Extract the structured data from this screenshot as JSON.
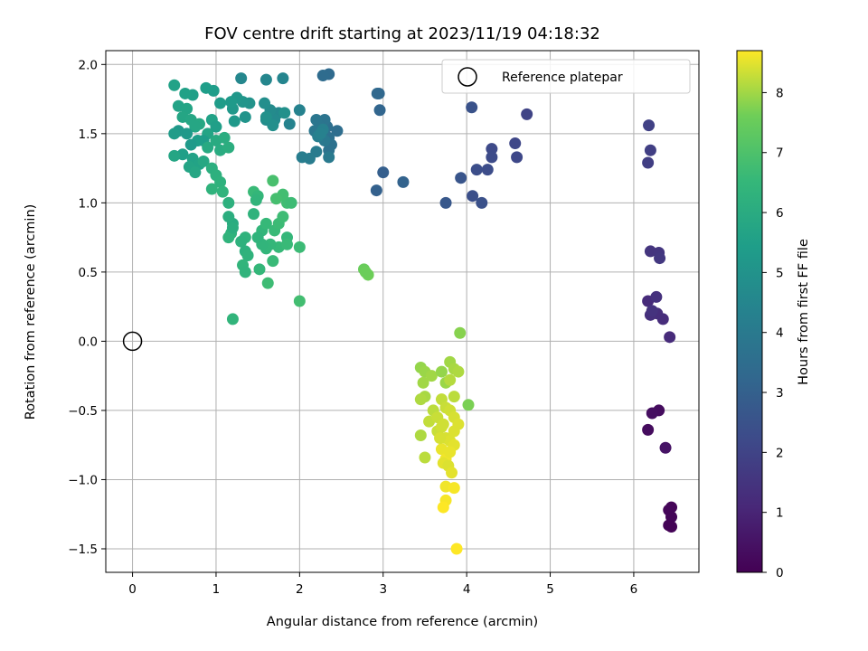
{
  "chart_data": {
    "type": "scatter",
    "title": "FOV centre drift starting at 2023/11/19 04:18:32",
    "xlabel": "Angular distance from reference (arcmin)",
    "ylabel": "Rotation from reference (arcmin)",
    "xlim": [
      -0.32,
      6.78
    ],
    "ylim": [
      -1.67,
      2.1
    ],
    "xticks": [
      0,
      1,
      2,
      3,
      4,
      5,
      6
    ],
    "yticks": [
      -1.5,
      -1.0,
      -0.5,
      0.0,
      0.5,
      1.0,
      1.5,
      2.0
    ],
    "ytick_labels": [
      "−1.5",
      "−1.0",
      "−0.5",
      "0.0",
      "0.5",
      "1.0",
      "1.5",
      "2.0"
    ],
    "grid": true,
    "legend": {
      "label": "Reference platepar",
      "placement": "upper right"
    },
    "reference_point": {
      "x": 0,
      "y": 0
    },
    "colorbar": {
      "label": "Hours from first FF file",
      "min": 0,
      "max": 8.7,
      "ticks": [
        0,
        1,
        2,
        3,
        4,
        5,
        6,
        7,
        8
      ],
      "colormap": "viridis"
    },
    "series": [
      {
        "points": [
          [
            6.3,
            -0.5,
            0.3
          ],
          [
            6.22,
            -0.52,
            0.35
          ],
          [
            6.17,
            -0.64,
            0.3
          ],
          [
            6.38,
            -0.77,
            0.5
          ],
          [
            6.45,
            -1.2,
            0.1
          ],
          [
            6.42,
            -1.22,
            0.15
          ],
          [
            6.45,
            -1.27,
            0.12
          ],
          [
            6.42,
            -1.33,
            0.08
          ],
          [
            6.45,
            -1.34,
            0.05
          ],
          [
            6.43,
            0.03,
            1.2
          ],
          [
            6.35,
            0.16,
            1.25
          ],
          [
            6.28,
            0.2,
            1.3
          ],
          [
            6.2,
            0.19,
            1.35
          ],
          [
            6.17,
            0.29,
            1.2
          ],
          [
            6.27,
            0.32,
            1.4
          ],
          [
            6.22,
            0.22,
            1.45
          ],
          [
            6.2,
            0.65,
            1.5
          ],
          [
            6.3,
            0.64,
            1.55
          ],
          [
            6.31,
            0.6,
            1.6
          ],
          [
            6.17,
            1.29,
            1.8
          ],
          [
            6.2,
            1.38,
            1.85
          ],
          [
            6.18,
            1.56,
            1.9
          ],
          [
            4.72,
            1.64,
            2.0
          ],
          [
            4.58,
            1.43,
            2.1
          ],
          [
            4.6,
            1.33,
            2.15
          ],
          [
            4.3,
            1.39,
            2.2
          ],
          [
            4.3,
            1.33,
            2.25
          ],
          [
            4.25,
            1.24,
            2.3
          ],
          [
            4.12,
            1.24,
            2.35
          ],
          [
            4.07,
            1.05,
            2.4
          ],
          [
            4.18,
            1.0,
            2.45
          ],
          [
            4.06,
            1.69,
            2.5
          ],
          [
            3.93,
            1.18,
            2.6
          ],
          [
            3.75,
            1.0,
            2.7
          ],
          [
            3.0,
            1.22,
            2.95
          ],
          [
            2.92,
            1.09,
            3.0
          ],
          [
            3.24,
            1.15,
            3.1
          ],
          [
            2.96,
            1.67,
            3.2
          ],
          [
            2.95,
            1.79,
            3.25
          ],
          [
            2.93,
            1.79,
            3.3
          ],
          [
            2.35,
            1.93,
            3.4
          ],
          [
            2.28,
            1.92,
            3.45
          ],
          [
            2.45,
            1.52,
            3.5
          ],
          [
            2.33,
            1.55,
            3.55
          ],
          [
            2.35,
            1.47,
            3.6
          ],
          [
            2.38,
            1.42,
            3.65
          ],
          [
            2.35,
            1.38,
            3.7
          ],
          [
            2.3,
            1.6,
            3.75
          ],
          [
            2.25,
            1.55,
            3.8
          ],
          [
            2.2,
            1.6,
            3.85
          ],
          [
            2.18,
            1.52,
            3.9
          ],
          [
            2.3,
            1.45,
            3.95
          ],
          [
            2.35,
            1.33,
            4.0
          ],
          [
            2.2,
            1.37,
            4.05
          ],
          [
            2.12,
            1.32,
            4.1
          ],
          [
            2.03,
            1.33,
            4.15
          ],
          [
            2.22,
            1.48,
            4.2
          ],
          [
            2.28,
            1.53,
            4.25
          ],
          [
            2.25,
            1.5,
            4.3
          ],
          [
            2.0,
            1.67,
            4.35
          ],
          [
            1.88,
            1.57,
            4.4
          ],
          [
            1.8,
            1.9,
            4.45
          ],
          [
            1.6,
            1.89,
            4.5
          ],
          [
            1.3,
            1.9,
            4.55
          ],
          [
            1.75,
            1.65,
            4.6
          ],
          [
            1.7,
            1.6,
            4.65
          ],
          [
            1.65,
            1.67,
            4.7
          ],
          [
            1.6,
            1.6,
            4.75
          ],
          [
            1.58,
            1.72,
            4.8
          ],
          [
            1.68,
            1.56,
            4.85
          ],
          [
            1.82,
            1.65,
            4.9
          ],
          [
            1.6,
            1.62,
            4.95
          ],
          [
            1.4,
            1.72,
            5.0
          ],
          [
            1.35,
            1.62,
            5.05
          ],
          [
            1.32,
            1.73,
            5.1
          ],
          [
            1.25,
            1.76,
            5.15
          ],
          [
            1.2,
            1.68,
            5.2
          ],
          [
            1.22,
            1.59,
            5.25
          ],
          [
            1.18,
            1.73,
            5.3
          ],
          [
            1.05,
            1.72,
            5.35
          ],
          [
            0.97,
            1.81,
            5.4
          ],
          [
            0.88,
            1.83,
            5.45
          ],
          [
            0.72,
            1.78,
            5.5
          ],
          [
            0.63,
            1.79,
            5.55
          ],
          [
            0.5,
            1.85,
            5.6
          ],
          [
            0.55,
            1.7,
            5.65
          ],
          [
            0.65,
            1.68,
            5.7
          ],
          [
            0.6,
            1.62,
            5.75
          ],
          [
            0.7,
            1.6,
            5.8
          ],
          [
            0.8,
            1.57,
            5.85
          ],
          [
            0.75,
            1.55,
            5.8
          ],
          [
            0.9,
            1.5,
            5.7
          ],
          [
            0.95,
            1.6,
            5.6
          ],
          [
            1.0,
            1.55,
            5.5
          ],
          [
            0.85,
            1.45,
            5.4
          ],
          [
            0.78,
            1.45,
            5.45
          ],
          [
            0.7,
            1.42,
            5.3
          ],
          [
            0.65,
            1.5,
            5.25
          ],
          [
            0.55,
            1.52,
            5.2
          ],
          [
            0.5,
            1.5,
            5.35
          ],
          [
            0.6,
            1.35,
            5.5
          ],
          [
            0.72,
            1.32,
            5.6
          ],
          [
            0.8,
            1.28,
            5.65
          ],
          [
            0.68,
            1.26,
            5.7
          ],
          [
            0.5,
            1.34,
            5.75
          ],
          [
            0.75,
            1.22,
            5.8
          ],
          [
            0.85,
            1.3,
            5.85
          ],
          [
            0.9,
            1.4,
            5.9
          ],
          [
            1.0,
            1.45,
            5.95
          ],
          [
            1.05,
            1.38,
            6.0
          ],
          [
            1.1,
            1.47,
            6.05
          ],
          [
            1.15,
            1.4,
            6.1
          ],
          [
            0.95,
            1.25,
            6.15
          ],
          [
            1.0,
            1.2,
            6.2
          ],
          [
            1.05,
            1.15,
            6.25
          ],
          [
            0.95,
            1.1,
            6.3
          ],
          [
            1.08,
            1.08,
            6.35
          ],
          [
            1.2,
            0.85,
            6.0
          ],
          [
            1.15,
            0.9,
            6.1
          ],
          [
            1.15,
            1.0,
            6.2
          ],
          [
            1.18,
            0.78,
            6.3
          ],
          [
            1.15,
            0.75,
            6.35
          ],
          [
            1.2,
            0.82,
            6.1
          ],
          [
            1.45,
            1.08,
            6.6
          ],
          [
            1.5,
            1.05,
            6.5
          ],
          [
            1.48,
            1.02,
            6.4
          ],
          [
            1.45,
            0.92,
            6.3
          ],
          [
            1.55,
            0.8,
            6.45
          ],
          [
            1.6,
            0.85,
            6.55
          ],
          [
            1.7,
            0.8,
            6.6
          ],
          [
            1.75,
            0.85,
            6.65
          ],
          [
            1.8,
            0.9,
            6.7
          ],
          [
            1.85,
            1.0,
            6.75
          ],
          [
            1.8,
            1.06,
            6.8
          ],
          [
            1.72,
            1.03,
            6.85
          ],
          [
            1.68,
            1.16,
            6.9
          ],
          [
            1.9,
            1.0,
            6.7
          ],
          [
            1.85,
            0.75,
            6.5
          ],
          [
            1.75,
            0.68,
            6.55
          ],
          [
            1.85,
            0.7,
            6.6
          ],
          [
            2.0,
            0.68,
            6.65
          ],
          [
            1.65,
            0.7,
            6.5
          ],
          [
            1.6,
            0.67,
            6.45
          ],
          [
            1.55,
            0.7,
            6.4
          ],
          [
            1.5,
            0.75,
            6.35
          ],
          [
            1.35,
            0.75,
            6.3
          ],
          [
            1.3,
            0.72,
            6.25
          ],
          [
            1.35,
            0.65,
            6.2
          ],
          [
            1.38,
            0.62,
            6.3
          ],
          [
            1.32,
            0.55,
            6.4
          ],
          [
            1.35,
            0.5,
            6.35
          ],
          [
            1.52,
            0.52,
            6.5
          ],
          [
            1.68,
            0.58,
            6.6
          ],
          [
            1.62,
            0.42,
            6.7
          ],
          [
            2.0,
            0.29,
            6.8
          ],
          [
            1.2,
            0.16,
            6.4
          ],
          [
            2.77,
            0.52,
            7.5
          ],
          [
            2.82,
            0.48,
            7.6
          ],
          [
            2.79,
            0.5,
            7.55
          ],
          [
            3.92,
            0.06,
            7.8
          ],
          [
            4.02,
            -0.46,
            7.7
          ],
          [
            3.45,
            -0.19,
            7.9
          ],
          [
            3.5,
            -0.22,
            7.95
          ],
          [
            3.48,
            -0.3,
            8.0
          ],
          [
            3.5,
            -0.4,
            8.05
          ],
          [
            3.45,
            -0.42,
            8.1
          ],
          [
            3.58,
            -0.25,
            8.0
          ],
          [
            3.7,
            -0.22,
            7.9
          ],
          [
            3.75,
            -0.3,
            7.95
          ],
          [
            3.8,
            -0.15,
            8.0
          ],
          [
            3.85,
            -0.2,
            8.05
          ],
          [
            3.9,
            -0.22,
            8.1
          ],
          [
            3.8,
            -0.28,
            8.15
          ],
          [
            3.85,
            -0.4,
            8.2
          ],
          [
            3.7,
            -0.42,
            8.25
          ],
          [
            3.75,
            -0.48,
            8.3
          ],
          [
            3.8,
            -0.5,
            8.35
          ],
          [
            3.85,
            -0.55,
            8.4
          ],
          [
            3.9,
            -0.6,
            8.45
          ],
          [
            3.6,
            -0.5,
            8.2
          ],
          [
            3.55,
            -0.58,
            8.25
          ],
          [
            3.65,
            -0.65,
            8.3
          ],
          [
            3.7,
            -0.62,
            8.35
          ],
          [
            3.75,
            -0.7,
            8.4
          ],
          [
            3.8,
            -0.72,
            8.45
          ],
          [
            3.85,
            -0.75,
            8.5
          ],
          [
            3.7,
            -0.78,
            8.55
          ],
          [
            3.75,
            -0.85,
            8.6
          ],
          [
            3.8,
            -0.8,
            8.55
          ],
          [
            3.72,
            -0.88,
            8.5
          ],
          [
            3.78,
            -0.9,
            8.45
          ],
          [
            3.82,
            -0.95,
            8.5
          ],
          [
            3.45,
            -0.68,
            8.1
          ],
          [
            3.5,
            -0.84,
            8.2
          ],
          [
            3.75,
            -1.05,
            8.6
          ],
          [
            3.85,
            -1.06,
            8.65
          ],
          [
            3.75,
            -1.15,
            8.65
          ],
          [
            3.72,
            -1.2,
            8.7
          ],
          [
            3.88,
            -1.5,
            8.7
          ],
          [
            3.65,
            -0.55,
            8.3
          ],
          [
            3.72,
            -0.6,
            8.35
          ],
          [
            3.68,
            -0.7,
            8.4
          ],
          [
            3.85,
            -0.65,
            8.45
          ]
        ]
      }
    ]
  }
}
